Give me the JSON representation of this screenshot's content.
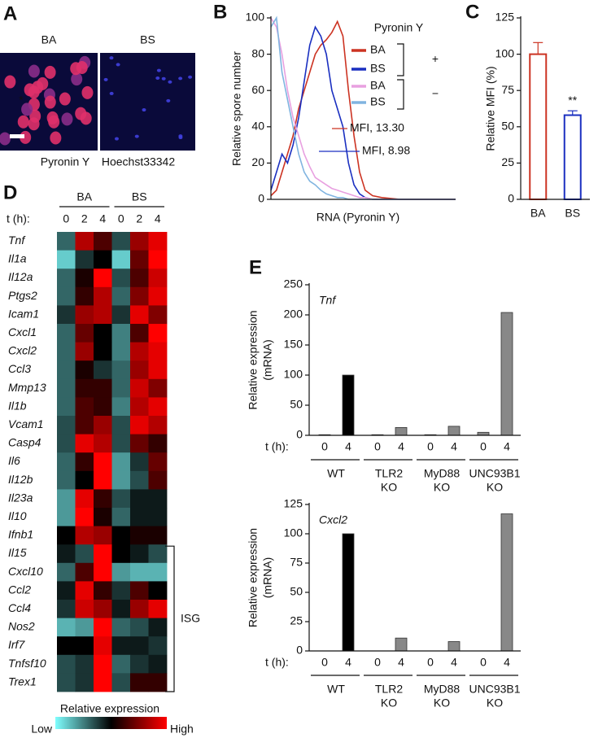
{
  "chart_data": [
    {
      "type": "micrograph",
      "panel": "A",
      "images": [
        "BA",
        "BS"
      ],
      "annotation": "*",
      "stains": [
        {
          "name": "Pyronin Y",
          "color": "#e0203a"
        },
        {
          "name": "Hoechst33342",
          "color": "#2a2ad8"
        }
      ]
    },
    {
      "type": "line",
      "panel": "B",
      "ylabel": "Relative spore number",
      "xlabel": "RNA (Pyronin Y)",
      "x": [
        0,
        3,
        6,
        9,
        12,
        15,
        18,
        21,
        24,
        27,
        30,
        33,
        36,
        39,
        42,
        45,
        48,
        51,
        55,
        60,
        70,
        80,
        90,
        100
      ],
      "xlim": [
        0,
        100
      ],
      "ylim": [
        0,
        100
      ],
      "yticks": [
        0,
        20,
        40,
        60,
        80,
        100
      ],
      "legend": {
        "title": "Pyronin Y",
        "groups": [
          "+",
          "−"
        ]
      },
      "series": [
        {
          "name": "BA",
          "color": "#cc3322",
          "values": [
            2,
            5,
            15,
            25,
            35,
            50,
            60,
            70,
            80,
            85,
            88,
            92,
            98,
            90,
            60,
            35,
            15,
            5,
            2,
            1,
            0,
            0,
            0,
            0
          ]
        },
        {
          "name": "BS",
          "color": "#1a2fc0",
          "values": [
            5,
            15,
            25,
            20,
            30,
            45,
            65,
            85,
            95,
            90,
            80,
            60,
            50,
            40,
            20,
            8,
            3,
            1,
            0,
            0,
            0,
            0,
            0,
            0
          ]
        },
        {
          "name": "BA",
          "color": "#e8a0e0",
          "values": [
            100,
            95,
            80,
            60,
            45,
            35,
            25,
            18,
            12,
            10,
            8,
            6,
            5,
            4,
            3,
            2,
            1,
            1,
            0,
            0,
            0,
            0,
            0,
            0
          ]
        },
        {
          "name": "BS",
          "color": "#80b4e0",
          "values": [
            95,
            100,
            70,
            55,
            40,
            25,
            15,
            10,
            8,
            5,
            3,
            2,
            1,
            1,
            0,
            0,
            0,
            0,
            0,
            0,
            0,
            0,
            0,
            0
          ]
        }
      ],
      "annotations": [
        {
          "text": "MFI, 13.30",
          "color": "#cc3322"
        },
        {
          "text": "MFI,  8.98",
          "color": "#1a2fc0"
        }
      ]
    },
    {
      "type": "bar",
      "panel": "C",
      "ylabel": "Relative MFI (%)",
      "categories": [
        "BA",
        "BS"
      ],
      "values": [
        100,
        58
      ],
      "errors": [
        8,
        3
      ],
      "colors": [
        "#cc3322",
        "#1a2fc0"
      ],
      "fill": "#ffffff",
      "ylim": [
        0,
        125
      ],
      "yticks": [
        0,
        25,
        50,
        75,
        100,
        125
      ],
      "annotation": "**"
    },
    {
      "type": "heatmap",
      "panel": "D",
      "groups": [
        "BA",
        "BS"
      ],
      "xlabel": "t (h):",
      "columns": [
        0,
        2,
        4,
        0,
        2,
        4
      ],
      "rows": [
        "Tnf",
        "Il1a",
        "Il12a",
        "Ptgs2",
        "Icam1",
        "Cxcl1",
        "Cxcl2",
        "Ccl3",
        "Mmp13",
        "Il1b",
        "Vcam1",
        "Casp4",
        "Il6",
        "Il12b",
        "Il23a",
        "Il10",
        "Ifnb1",
        "Il15",
        "Cxcl10",
        "Ccl2",
        "Ccl4",
        "Nos2",
        "Irf7",
        "Tnfsf10",
        "Trex1"
      ],
      "values": [
        [
          0.3,
          0.85,
          0.65,
          0.35,
          0.8,
          0.95
        ],
        [
          0.1,
          0.4,
          0.5,
          0.1,
          0.7,
          1
        ],
        [
          0.3,
          0.55,
          1,
          0.35,
          0.65,
          0.9
        ],
        [
          0.3,
          0.6,
          0.85,
          0.3,
          0.75,
          0.95
        ],
        [
          0.4,
          0.8,
          0.85,
          0.4,
          0.95,
          0.75
        ],
        [
          0.3,
          0.7,
          0.5,
          0.25,
          0.65,
          1
        ],
        [
          0.3,
          0.8,
          0.5,
          0.25,
          0.85,
          0.95
        ],
        [
          0.3,
          0.55,
          0.4,
          0.3,
          0.8,
          0.95
        ],
        [
          0.3,
          0.6,
          0.6,
          0.3,
          0.9,
          0.75
        ],
        [
          0.3,
          0.65,
          0.6,
          0.25,
          0.85,
          0.95
        ],
        [
          0.35,
          0.65,
          0.8,
          0.35,
          0.95,
          0.85
        ],
        [
          0.35,
          0.95,
          0.85,
          0.35,
          0.7,
          0.6
        ],
        [
          0.3,
          0.6,
          1,
          0.2,
          0.4,
          0.7
        ],
        [
          0.3,
          0.5,
          1,
          0.2,
          0.35,
          0.65
        ],
        [
          0.2,
          0.95,
          0.6,
          0.35,
          0.45,
          0.45
        ],
        [
          0.2,
          1,
          0.55,
          0.3,
          0.45,
          0.45
        ],
        [
          0.5,
          0.85,
          0.8,
          0.5,
          0.55,
          0.55
        ],
        [
          0.45,
          0.35,
          1,
          0.5,
          0.45,
          0.35
        ],
        [
          0.3,
          0.65,
          1,
          0.2,
          0.15,
          0.15
        ],
        [
          0.45,
          0.95,
          0.6,
          0.4,
          0.65,
          0.5
        ],
        [
          0.4,
          0.9,
          0.8,
          0.45,
          0.8,
          0.95
        ],
        [
          0.15,
          0.2,
          1,
          0.3,
          0.35,
          0.45
        ],
        [
          0.5,
          0.5,
          0.95,
          0.45,
          0.45,
          0.4
        ],
        [
          0.35,
          0.4,
          1,
          0.3,
          0.4,
          0.45
        ],
        [
          0.35,
          0.4,
          1,
          0.35,
          0.6,
          0.6
        ]
      ],
      "bracket_label": "ISG",
      "colorscale": {
        "title": "Relative expression",
        "colors": [
          "#80ffff",
          "#000000",
          "#ff0000"
        ],
        "ticks": [
          {
            "value": 0,
            "label": "Low"
          },
          {
            "value": 1,
            "label": "High"
          }
        ]
      }
    },
    {
      "type": "grouped-bar",
      "panel": "E",
      "title": "Tnf",
      "ylabel": [
        "Relative expression",
        "(mRNA)"
      ],
      "xlabel": "t (h):",
      "categories": [
        "0",
        "4",
        "0",
        "4",
        "0",
        "4",
        "0",
        "4"
      ],
      "groups": [
        [
          "WT"
        ],
        [
          "TLR2",
          "KO"
        ],
        [
          "MyD88",
          "KO"
        ],
        [
          "UNC93B1",
          "KO"
        ]
      ],
      "values": [
        1,
        100,
        1,
        13,
        1,
        15,
        5,
        204
      ],
      "colors": [
        "#000000",
        "#000000",
        "#888888",
        "#888888",
        "#888888",
        "#888888",
        "#888888",
        "#888888"
      ],
      "ylim": [
        0,
        250
      ],
      "yticks": [
        0,
        50,
        100,
        150,
        200,
        250
      ]
    },
    {
      "type": "grouped-bar",
      "title": "Cxcl2",
      "ylabel": [
        "Relative expression",
        "(mRNA)"
      ],
      "xlabel": "t (h):",
      "categories": [
        "0",
        "4",
        "0",
        "4",
        "0",
        "4",
        "0",
        "4"
      ],
      "groups": [
        [
          "WT"
        ],
        [
          "TLR2",
          "KO"
        ],
        [
          "MyD88",
          "KO"
        ],
        [
          "UNC93B1",
          "KO"
        ]
      ],
      "values": [
        0,
        100,
        0,
        11,
        0,
        8,
        0,
        117
      ],
      "colors": [
        "#000000",
        "#000000",
        "#888888",
        "#888888",
        "#888888",
        "#888888",
        "#888888",
        "#888888"
      ],
      "ylim": [
        0,
        125
      ],
      "yticks": [
        0,
        25,
        50,
        75,
        100,
        125
      ]
    }
  ]
}
